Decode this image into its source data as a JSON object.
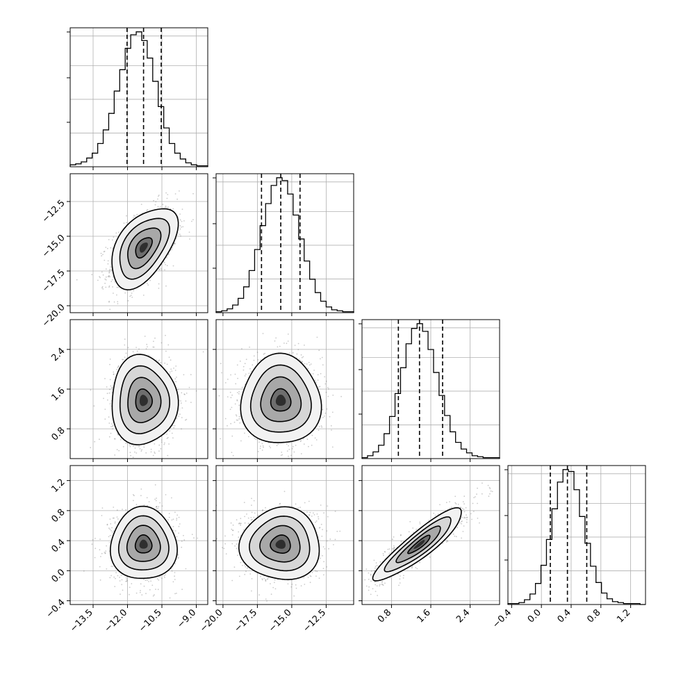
{
  "chart_data": {
    "type": "corner",
    "grid": true,
    "variables": [
      {
        "name": "",
        "range": [
          -14.5,
          -8.5
        ],
        "ticks": [
          -13.5,
          -12.0,
          -10.5,
          -9.0
        ],
        "tick_labels": [
          "−13.5",
          "−12.0",
          "−10.5",
          "−9.0"
        ],
        "mean": -11.3,
        "std": 0.72,
        "quantiles": [
          -12.02,
          -11.3,
          -10.53
        ]
      },
      {
        "name": "",
        "range": [
          -20.5,
          -10.5
        ],
        "ticks": [
          -20.0,
          -17.5,
          -15.0,
          -12.5
        ],
        "tick_labels": [
          "−20.0",
          "−17.5",
          "−15.0",
          "−12.5"
        ],
        "mean": -15.8,
        "std": 1.45,
        "quantiles": [
          -17.2,
          -15.8,
          -14.4
        ]
      },
      {
        "name": "",
        "range": [
          0.2,
          3.0
        ],
        "ticks": [
          0.8,
          1.6,
          2.4
        ],
        "tick_labels": [
          "0.8",
          "1.6",
          "2.4"
        ],
        "mean": 1.37,
        "std": 0.45,
        "quantiles": [
          0.94,
          1.37,
          1.84
        ]
      },
      {
        "name": "",
        "range": [
          -0.45,
          1.4
        ],
        "ticks": [
          -0.4,
          0.0,
          0.4,
          0.8,
          1.2
        ],
        "tick_labels": [
          "−0.4",
          "0.0",
          "0.4",
          "0.8",
          "1.2"
        ],
        "mean": 0.35,
        "std": 0.24,
        "quantiles": [
          0.12,
          0.35,
          0.61
        ]
      }
    ],
    "correlations": [
      {
        "pair": [
          0,
          1
        ],
        "rho": 0.5
      },
      {
        "pair": [
          0,
          2
        ],
        "rho": 0.0
      },
      {
        "pair": [
          1,
          2
        ],
        "rho": 0.0
      },
      {
        "pair": [
          0,
          3
        ],
        "rho": 0.0
      },
      {
        "pair": [
          1,
          3
        ],
        "rho": 0.0
      },
      {
        "pair": [
          2,
          3
        ],
        "rho": 0.9
      }
    ],
    "histograms": [
      {
        "variable": 0,
        "counts": [
          2,
          3,
          5,
          9,
          14,
          24,
          38,
          55,
          78,
          100,
          122,
          136,
          139,
          130,
          112,
          88,
          62,
          40,
          24,
          14,
          8,
          4,
          2,
          1,
          1
        ]
      },
      {
        "variable": 1,
        "counts": [
          1,
          2,
          4,
          8,
          15,
          27,
          44,
          66,
          91,
          114,
          133,
          141,
          138,
          124,
          102,
          77,
          54,
          35,
          21,
          12,
          6,
          3,
          2,
          1,
          1
        ]
      },
      {
        "variable": 2,
        "counts": [
          1,
          3,
          7,
          14,
          26,
          44,
          68,
          95,
          120,
          136,
          141,
          133,
          114,
          90,
          66,
          45,
          28,
          17,
          10,
          6,
          3,
          2,
          1,
          1,
          1
        ]
      },
      {
        "variable": 3,
        "counts": [
          1,
          1,
          2,
          5,
          11,
          22,
          41,
          68,
          100,
          128,
          141,
          139,
          120,
          92,
          64,
          40,
          23,
          12,
          6,
          3,
          2,
          1,
          1,
          1,
          0
        ]
      }
    ],
    "contour_levels_sigma": [
      0.5,
      1.0,
      1.5,
      2.0
    ]
  }
}
